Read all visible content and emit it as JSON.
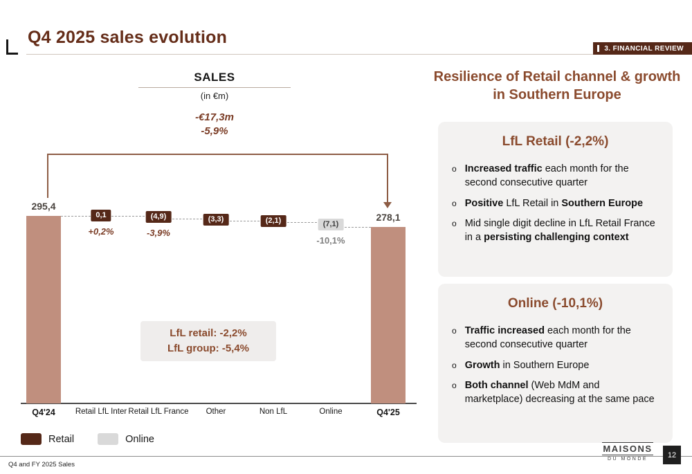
{
  "header": {
    "title": "Q4 2025 sales evolution",
    "section_badge": "3. FINANCIAL REVIEW"
  },
  "chart_data": {
    "type": "bar",
    "subtype": "waterfall",
    "title": "SALES",
    "unit_label": "(in €m)",
    "delta_label": "-€17,3m",
    "delta_pct": "-5,9%",
    "categories": [
      "Q4'24",
      "Retail LfL Inter",
      "Retail LfL France",
      "Other",
      "Non LfL",
      "Online",
      "Q4'25"
    ],
    "values": [
      295.4,
      0.1,
      -4.9,
      -3.3,
      -2.1,
      -7.1,
      278.1
    ],
    "value_labels": [
      "295,4",
      "0,1",
      "(4,9)",
      "(3,3)",
      "(2,1)",
      "(7,1)",
      "278,1"
    ],
    "pct_labels": [
      "",
      "+0,2%",
      "-3,9%",
      "",
      "",
      "-10,1%",
      ""
    ],
    "totals_indexes": [
      0,
      6
    ],
    "annotation_lines": [
      "LfL retail: -2,2%",
      "LfL group: -5,4%"
    ],
    "legend": [
      {
        "label": "Retail",
        "color": "#552818"
      },
      {
        "label": "Online",
        "color": "#d9d9d9"
      }
    ]
  },
  "right_panel": {
    "heading": "Resilience of Retail channel & growth in Southern Europe",
    "cards": [
      {
        "title": "LfL Retail (-2,2%)",
        "bullets": [
          [
            {
              "t": "Increased traffic",
              "b": true
            },
            {
              "t": " each month for the second consecutive quarter",
              "b": false
            }
          ],
          [
            {
              "t": "Positive",
              "b": true
            },
            {
              "t": " LfL Retail in ",
              "b": false
            },
            {
              "t": "Southern Europe",
              "b": true
            }
          ],
          [
            {
              "t": "Mid single digit decline in LfL Retail France in a ",
              "b": false
            },
            {
              "t": "persisting challenging context",
              "b": true
            }
          ]
        ]
      },
      {
        "title": "Online (-10,1%)",
        "bullets": [
          [
            {
              "t": "Traffic increased",
              "b": true
            },
            {
              "t": " each month for the second consecutive quarter",
              "b": false
            }
          ],
          [
            {
              "t": "Growth",
              "b": true
            },
            {
              "t": " in Southern Europe",
              "b": false
            }
          ],
          [
            {
              "t": "Both channel",
              "b": true
            },
            {
              "t": " (Web MdM and marketplace) decreasing at the same pace",
              "b": false
            }
          ]
        ]
      }
    ]
  },
  "footer": {
    "note": "Q4 and FY 2025 Sales",
    "brand_top": "MAISONS",
    "brand_bottom": "DU MONDE",
    "page": "12"
  },
  "colors": {
    "brand_dark": "#552818",
    "title_brown": "#652d19",
    "accent_brown": "#8a4a2d",
    "bar_rose": "#c08f7e",
    "gray_segment": "#d9d9d9",
    "card_bg": "#f3f2f1"
  }
}
